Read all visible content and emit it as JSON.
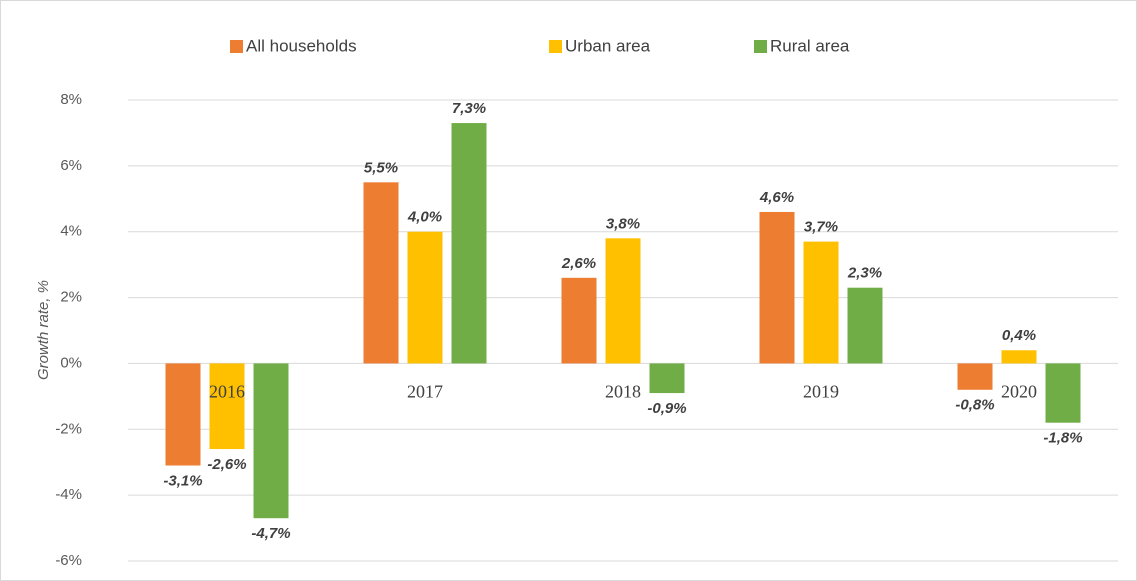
{
  "chart_data": {
    "type": "bar",
    "y_axis_label": "Growth rate, %",
    "categories": [
      "2016",
      "2017",
      "2018",
      "2019",
      "2020"
    ],
    "series": [
      {
        "name": "All households",
        "color": "#ed7d31",
        "values": [
          -3.1,
          5.5,
          2.6,
          4.6,
          -0.8
        ],
        "value_labels": [
          "-3,1%",
          "5,5%",
          "2,6%",
          "4,6%",
          "-0,8%"
        ]
      },
      {
        "name": "Urban area",
        "color": "#ffc000",
        "values": [
          -2.6,
          4.0,
          3.8,
          3.7,
          0.4
        ],
        "value_labels": [
          "-2,6%",
          "4,0%",
          "3,8%",
          "3,7%",
          "0,4%"
        ]
      },
      {
        "name": "Rural area",
        "color": "#70ad47",
        "values": [
          -4.7,
          7.3,
          -0.9,
          2.3,
          -1.8
        ],
        "value_labels": [
          "-4,7%",
          "7,3%",
          "-0,9%",
          "2,3%",
          "-1,8%"
        ]
      }
    ],
    "ylim": [
      -6,
      8
    ],
    "yticks": [
      {
        "value": -6,
        "label": "-6%"
      },
      {
        "value": -4,
        "label": "-4%"
      },
      {
        "value": -2,
        "label": "-2%"
      },
      {
        "value": 0,
        "label": "0%"
      },
      {
        "value": 2,
        "label": "2%"
      },
      {
        "value": 4,
        "label": "4%"
      },
      {
        "value": 6,
        "label": "6%"
      },
      {
        "value": 8,
        "label": "8%"
      }
    ],
    "grid": true,
    "legend": "top"
  }
}
